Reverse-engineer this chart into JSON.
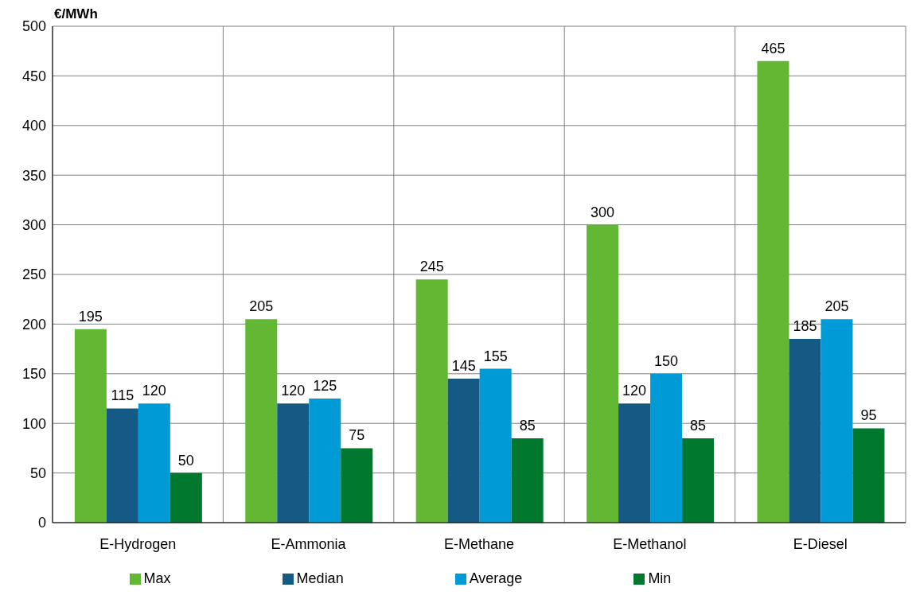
{
  "chart_data": {
    "type": "bar",
    "ylabel": "€/MWh",
    "categories": [
      "E-Hydrogen",
      "E-Ammonia",
      "E-Methane",
      "E-Methanol",
      "E-Diesel"
    ],
    "series": [
      {
        "name": "Max",
        "color": "#62b832",
        "values": [
          195,
          205,
          245,
          300,
          465
        ]
      },
      {
        "name": "Median",
        "color": "#155a85",
        "values": [
          115,
          120,
          145,
          120,
          185
        ]
      },
      {
        "name": "Average",
        "color": "#009ad6",
        "values": [
          120,
          125,
          155,
          150,
          205
        ]
      },
      {
        "name": "Min",
        "color": "#00782e",
        "values": [
          50,
          75,
          85,
          85,
          95
        ]
      }
    ],
    "ylim": [
      0,
      500
    ],
    "yticks": [
      0,
      50,
      100,
      150,
      200,
      250,
      300,
      350,
      400,
      450,
      500
    ],
    "grid": true,
    "legend": "bottom",
    "data_labels": true
  }
}
